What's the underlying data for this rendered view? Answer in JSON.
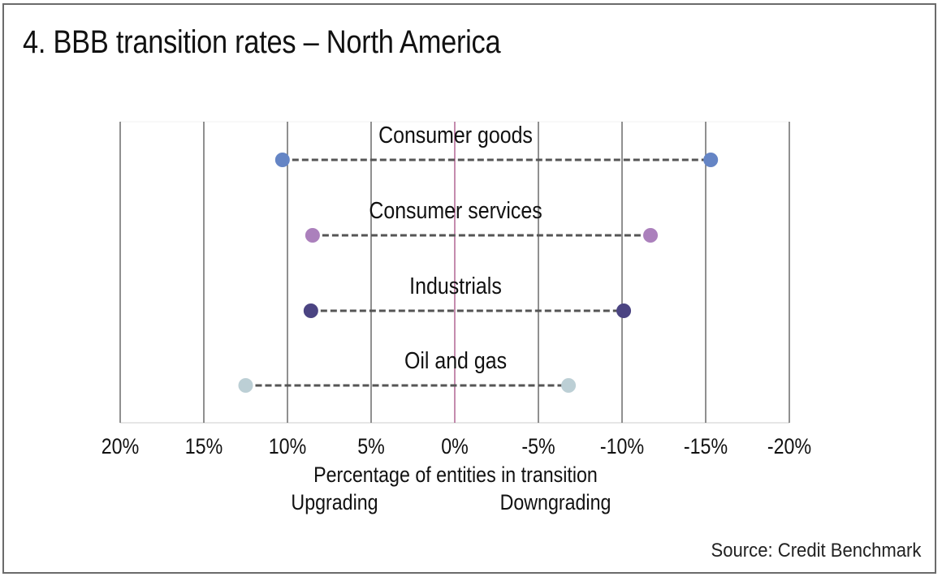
{
  "title": "4. BBB transition rates – North America",
  "source": "Source: Credit Benchmark",
  "colors": {
    "consumer_goods": "#6585c5",
    "consumer_services": "#ab80bc",
    "industrials": "#4b4482",
    "oil_and_gas": "#bccfd5",
    "connector": "#555555",
    "grid": "#555555",
    "zero_line": "#8b1a5e",
    "axis": "#dddddd"
  },
  "chart_data": {
    "type": "dumbbell",
    "title": "4. BBB transition rates – North America",
    "xlabel": "Percentage of entities in transition",
    "xlabel_left": "Upgrading",
    "xlabel_right": "Downgrading",
    "x_reversed": true,
    "xlim": [
      20,
      -20
    ],
    "xticks": [
      20,
      15,
      10,
      5,
      0,
      -5,
      -10,
      -15,
      -20
    ],
    "xtick_labels": [
      "20%",
      "15%",
      "10%",
      "5%",
      "0%",
      "-5%",
      "-10%",
      "-15%",
      "-20%"
    ],
    "grid": true,
    "categories": [
      "Consumer goods",
      "Consumer services",
      "Industrials",
      "Oil and gas"
    ],
    "series": [
      {
        "name": "Upgrading",
        "values": [
          10.3,
          8.5,
          8.6,
          12.5
        ]
      },
      {
        "name": "Downgrading",
        "values": [
          -15.3,
          -11.7,
          -10.1,
          -6.8
        ]
      }
    ],
    "units": "%"
  }
}
